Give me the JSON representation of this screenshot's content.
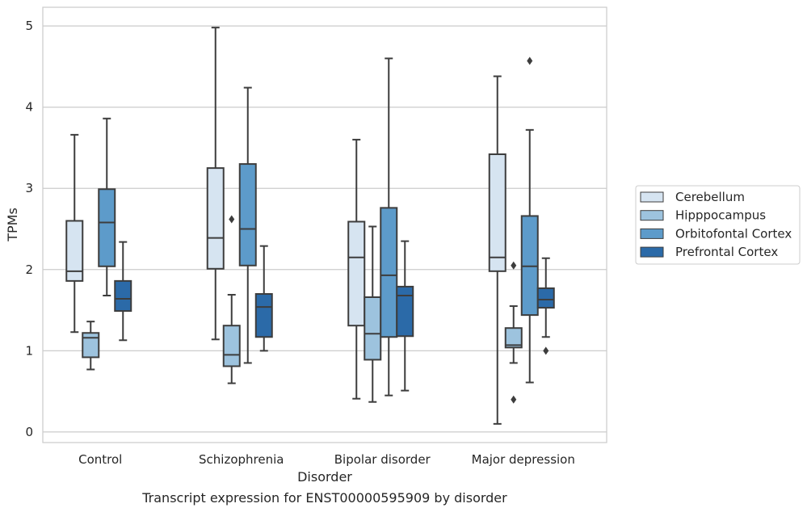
{
  "chart_data": {
    "type": "box",
    "title": "",
    "caption": "Transcript expression for ENST00000595909 by disorder",
    "xlabel": "Disorder",
    "ylabel": "TPMs",
    "ylim": [
      -0.13,
      5.23
    ],
    "yticks": [
      "0",
      "1",
      "2",
      "3",
      "4",
      "5"
    ],
    "grid": "horizontal",
    "legend_position": "right",
    "categories": [
      "Control",
      "Schizophrenia",
      "Bipolar disorder",
      "Major depression"
    ],
    "series": [
      {
        "name": "Cerebellum",
        "color": "#d6e4f1",
        "boxes": [
          {
            "whisker_low": 1.23,
            "q1": 1.86,
            "median": 1.98,
            "q3": 2.6,
            "whisker_high": 3.66,
            "outliers": []
          },
          {
            "whisker_low": 1.14,
            "q1": 2.01,
            "median": 2.39,
            "q3": 3.25,
            "whisker_high": 4.98,
            "outliers": []
          },
          {
            "whisker_low": 0.41,
            "q1": 1.31,
            "median": 2.15,
            "q3": 2.59,
            "whisker_high": 3.6,
            "outliers": []
          },
          {
            "whisker_low": 0.1,
            "q1": 1.98,
            "median": 2.15,
            "q3": 3.42,
            "whisker_high": 4.38,
            "outliers": []
          }
        ]
      },
      {
        "name": "Hipppocampus",
        "color": "#9dc3de",
        "boxes": [
          {
            "whisker_low": 0.77,
            "q1": 0.92,
            "median": 1.16,
            "q3": 1.22,
            "whisker_high": 1.36,
            "outliers": []
          },
          {
            "whisker_low": 0.6,
            "q1": 0.81,
            "median": 0.95,
            "q3": 1.31,
            "whisker_high": 1.69,
            "outliers": [
              2.62
            ]
          },
          {
            "whisker_low": 0.37,
            "q1": 0.89,
            "median": 1.21,
            "q3": 1.66,
            "whisker_high": 2.53,
            "outliers": []
          },
          {
            "whisker_low": 0.85,
            "q1": 1.04,
            "median": 1.07,
            "q3": 1.28,
            "whisker_high": 1.55,
            "outliers": [
              2.05,
              0.4
            ]
          }
        ]
      },
      {
        "name": "Orbitofontal Cortex",
        "color": "#5d9bca",
        "boxes": [
          {
            "whisker_low": 1.68,
            "q1": 2.04,
            "median": 2.58,
            "q3": 2.99,
            "whisker_high": 3.86,
            "outliers": []
          },
          {
            "whisker_low": 0.85,
            "q1": 2.05,
            "median": 2.5,
            "q3": 3.3,
            "whisker_high": 4.24,
            "outliers": []
          },
          {
            "whisker_low": 0.45,
            "q1": 1.17,
            "median": 1.93,
            "q3": 2.76,
            "whisker_high": 4.6,
            "outliers": []
          },
          {
            "whisker_low": 0.61,
            "q1": 1.44,
            "median": 2.04,
            "q3": 2.66,
            "whisker_high": 3.72,
            "outliers": [
              4.57
            ]
          }
        ]
      },
      {
        "name": "Prefrontal Cortex",
        "color": "#2b6aa8",
        "boxes": [
          {
            "whisker_low": 1.13,
            "q1": 1.49,
            "median": 1.64,
            "q3": 1.86,
            "whisker_high": 2.34,
            "outliers": []
          },
          {
            "whisker_low": 1.0,
            "q1": 1.17,
            "median": 1.54,
            "q3": 1.7,
            "whisker_high": 2.29,
            "outliers": []
          },
          {
            "whisker_low": 0.51,
            "q1": 1.18,
            "median": 1.68,
            "q3": 1.79,
            "whisker_high": 2.35,
            "outliers": []
          },
          {
            "whisker_low": 1.17,
            "q1": 1.53,
            "median": 1.63,
            "q3": 1.77,
            "whisker_high": 2.14,
            "outliers": [
              1.0
            ]
          }
        ]
      }
    ]
  }
}
